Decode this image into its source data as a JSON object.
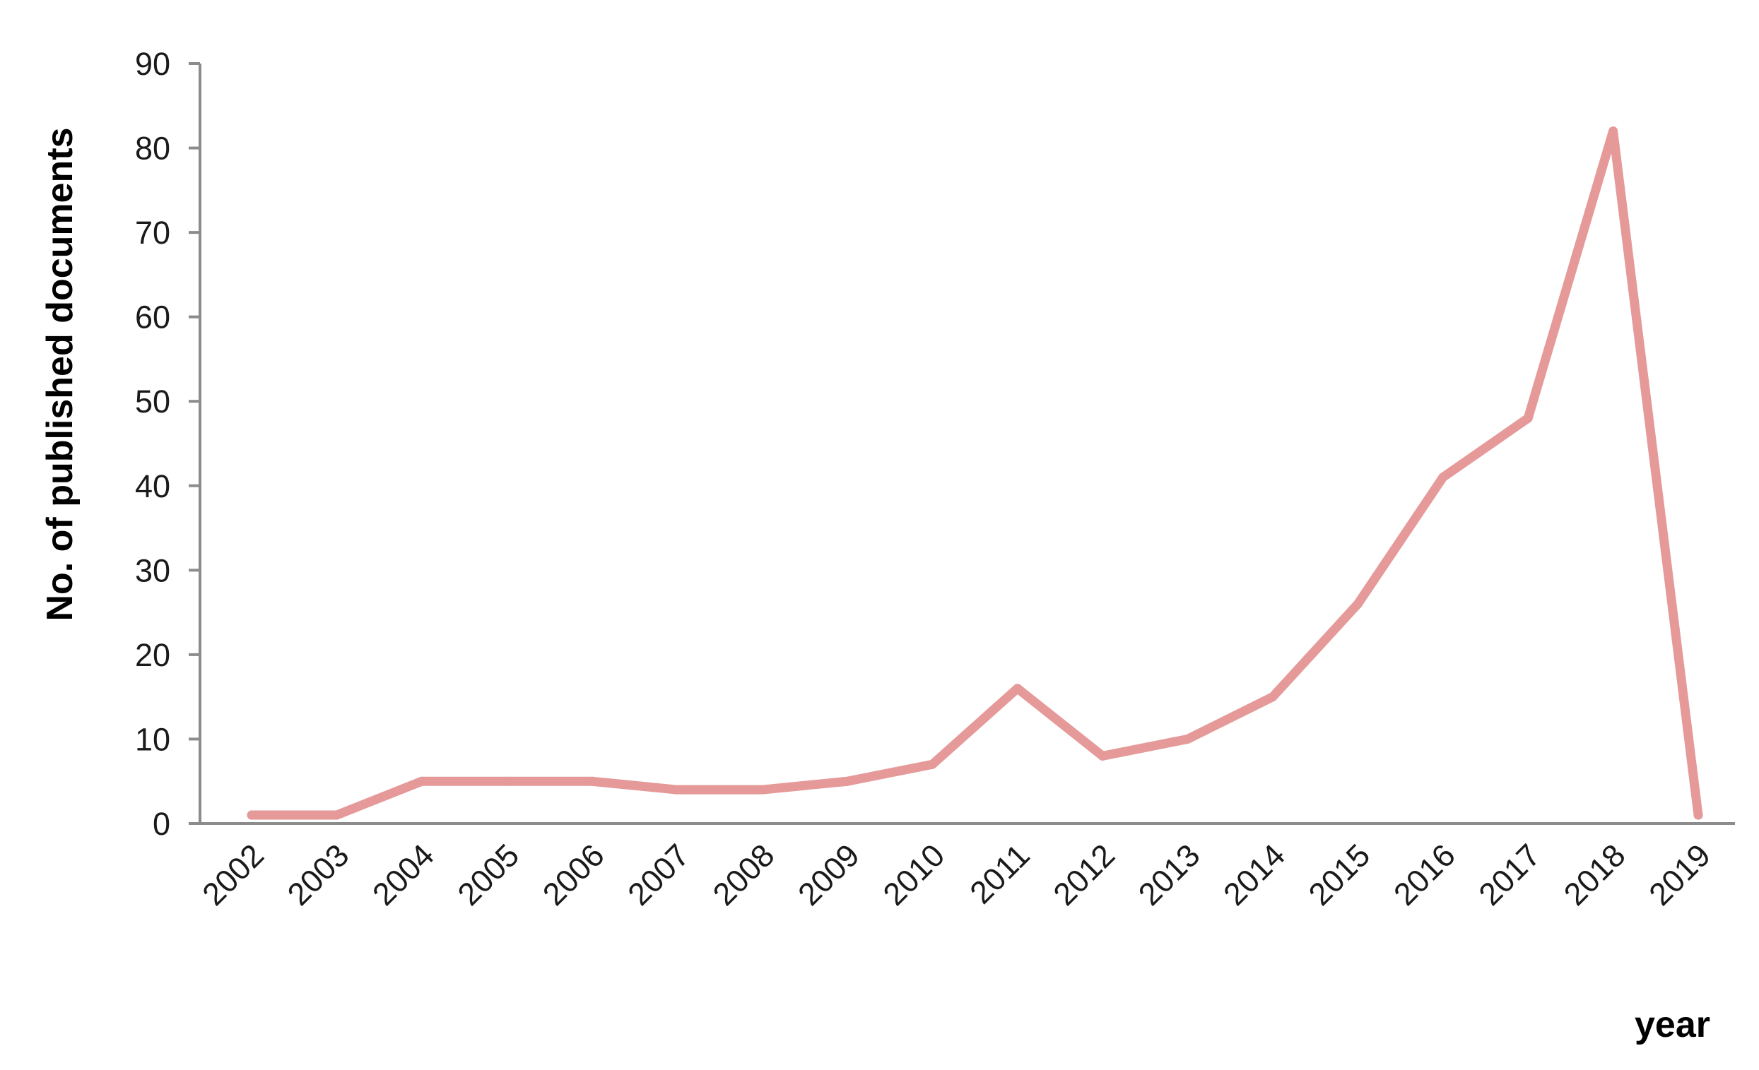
{
  "chart_data": {
    "type": "line",
    "title": "",
    "xlabel": "year",
    "ylabel": "No. of published documents",
    "categories": [
      "2002",
      "2003",
      "2004",
      "2005",
      "2006",
      "2007",
      "2008",
      "2009",
      "2010",
      "2011",
      "2012",
      "2013",
      "2014",
      "2015",
      "2016",
      "2017",
      "2018",
      "2019"
    ],
    "series": [
      {
        "values": [
          1,
          1,
          5,
          5,
          5,
          4,
          4,
          5,
          7,
          16,
          8,
          10,
          15,
          26,
          41,
          48,
          82,
          1
        ],
        "color": "#e59a99"
      }
    ],
    "yticks": [
      "0",
      "10",
      "20",
      "30",
      "40",
      "50",
      "60",
      "70",
      "80",
      "90"
    ],
    "ylim": [
      0,
      90
    ],
    "grid": false,
    "legend": "none",
    "axis_color": "#8c8c8c"
  }
}
